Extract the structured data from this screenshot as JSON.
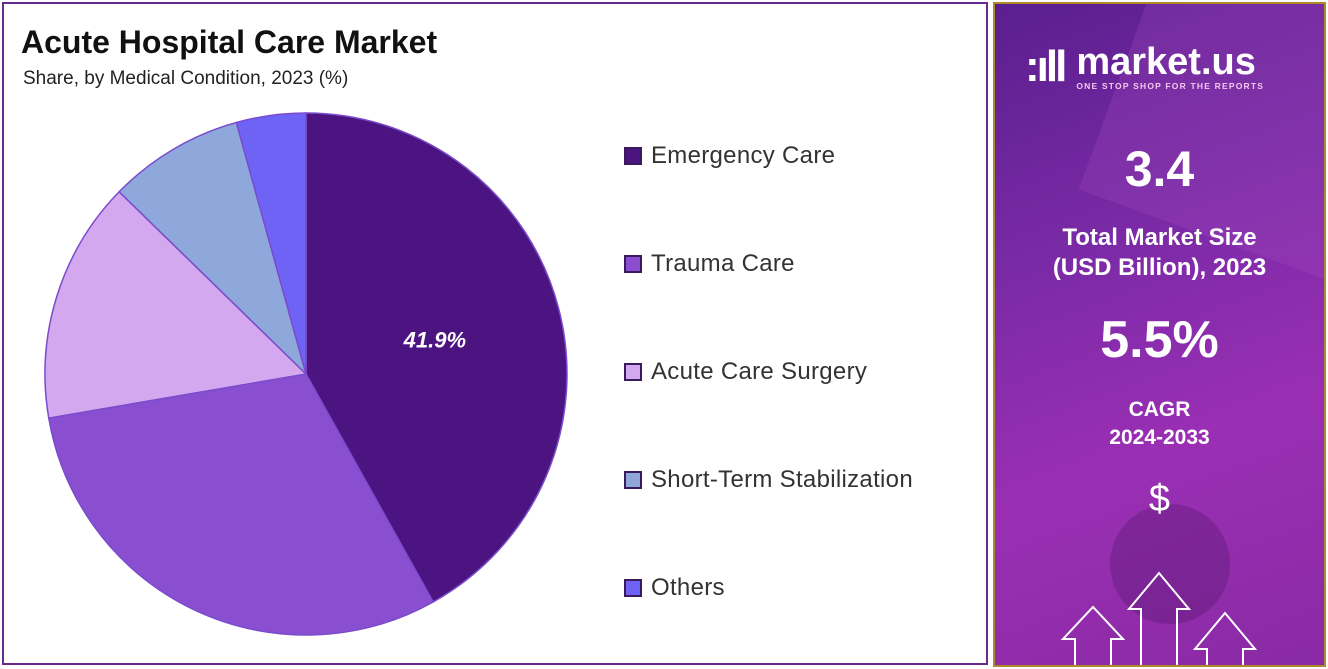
{
  "chart_data": {
    "type": "pie",
    "title": "Acute Hospital Care Market",
    "subtitle": "Share, by Medical Condition, 2023 (%)",
    "categories": [
      "Emergency Care",
      "Trauma Care",
      "Acute Care Surgery",
      "Short-Term Stabilization",
      "Others"
    ],
    "values": [
      41.9,
      30.4,
      15.0,
      8.4,
      4.3
    ],
    "colors": [
      "#4b1480",
      "#8a4fd0",
      "#d4a8ee",
      "#8fa8dc",
      "#6f63f5"
    ],
    "data_labels": [
      "41.9%",
      "",
      "",
      "",
      ""
    ],
    "legend_position": "right"
  },
  "panel": {
    "brand": "market.us",
    "tagline": "ONE STOP SHOP FOR THE REPORTS",
    "market_size": "3.4",
    "market_size_label_1": "Total Market Size",
    "market_size_label_2": "(USD Billion), 2023",
    "cagr": "5.5%",
    "cagr_label_1": "CAGR",
    "cagr_label_2": "2024-2033",
    "currency_symbol": "$"
  }
}
